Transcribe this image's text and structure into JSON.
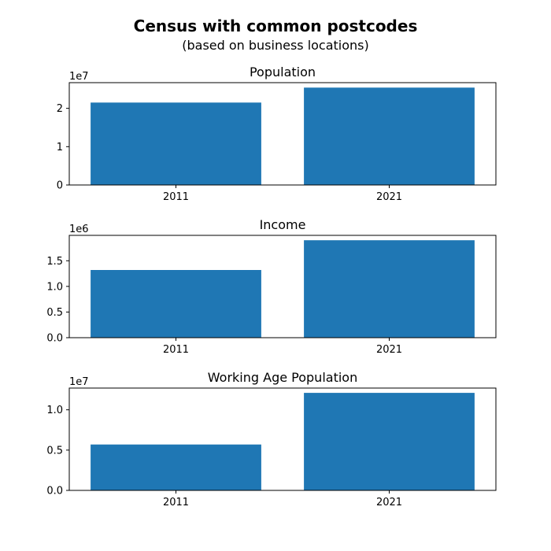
{
  "figure": {
    "title": "Census with common postcodes",
    "subtitle": "(based on business locations)"
  },
  "colors": {
    "bar": "#1f77b4",
    "axis": "#000000",
    "background": "#ffffff"
  },
  "chart_data": [
    {
      "type": "bar",
      "title": "Population",
      "categories": [
        "2011",
        "2021"
      ],
      "values": [
        21500000,
        25400000
      ],
      "scale_label": "1e7",
      "scale": 10000000,
      "ylim": [
        0,
        26700000
      ],
      "yticks": [
        0,
        10000000,
        20000000
      ],
      "ytick_labels": [
        "0",
        "1",
        "2"
      ],
      "grid": false
    },
    {
      "type": "bar",
      "title": "Income",
      "categories": [
        "2011",
        "2021"
      ],
      "values": [
        1320000,
        1900000
      ],
      "scale_label": "1e6",
      "scale": 1000000,
      "ylim": [
        0,
        1995000
      ],
      "yticks": [
        0,
        500000,
        1000000,
        1500000
      ],
      "ytick_labels": [
        "0.0",
        "0.5",
        "1.0",
        "1.5"
      ],
      "grid": false
    },
    {
      "type": "bar",
      "title": "Working Age Population",
      "categories": [
        "2011",
        "2021"
      ],
      "values": [
        5700000,
        12100000
      ],
      "scale_label": "1e7",
      "scale": 10000000,
      "ylim": [
        0,
        12700000
      ],
      "yticks": [
        0,
        5000000,
        10000000
      ],
      "ytick_labels": [
        "0.0",
        "0.5",
        "1.0"
      ],
      "grid": false
    }
  ]
}
